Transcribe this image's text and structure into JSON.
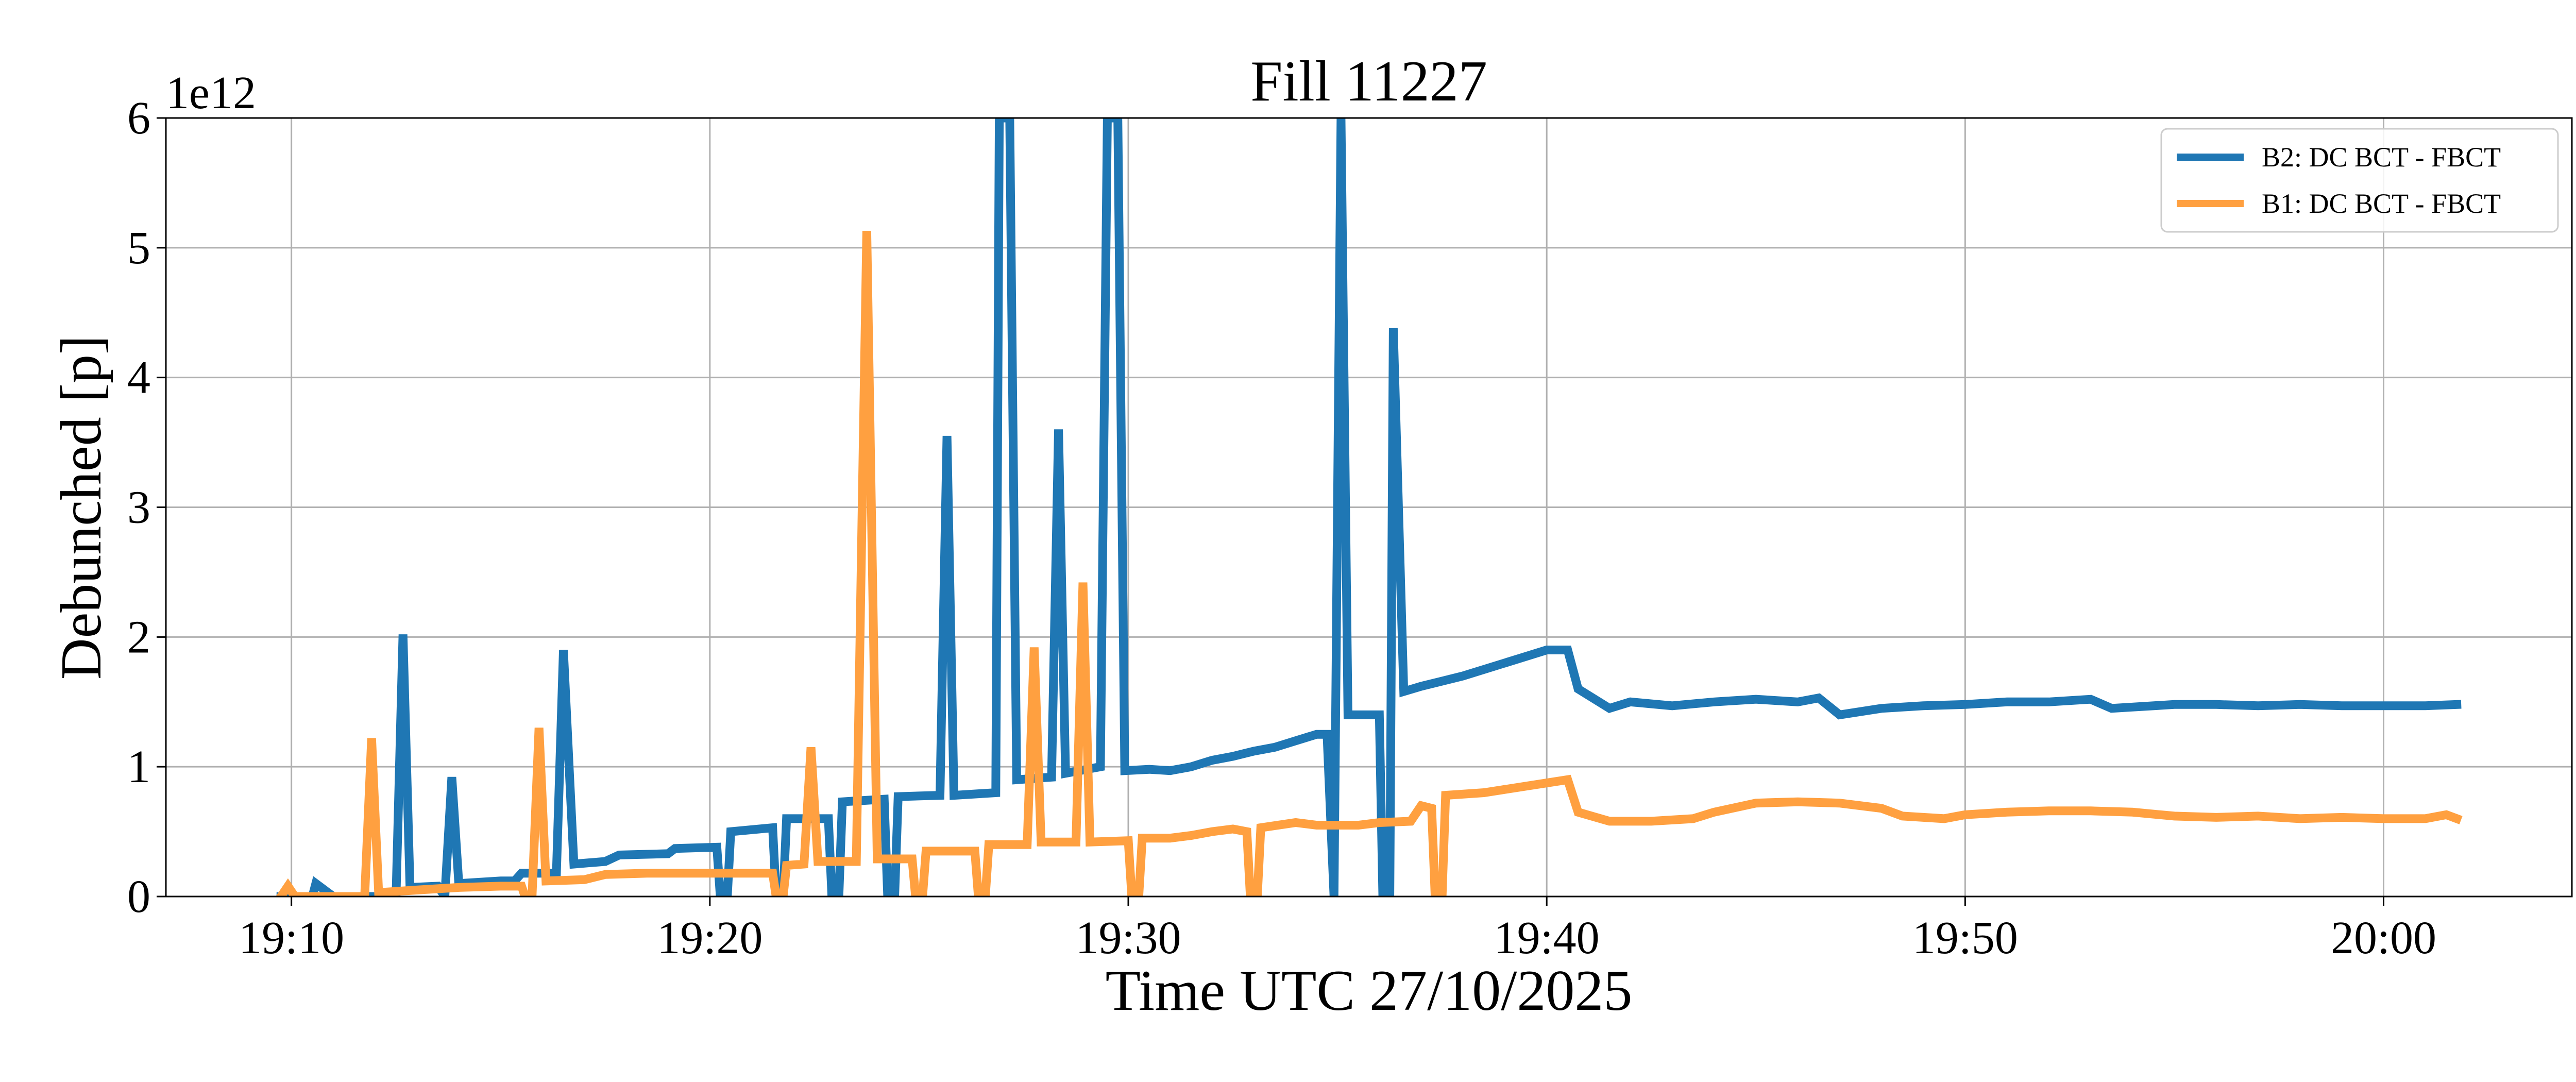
{
  "chart_data": {
    "type": "line",
    "title": "Fill 11227",
    "xlabel": "Time UTC 27/10/2025",
    "ylabel": "Debunched [p]",
    "y_offset_label": "1e12",
    "y_unit_scale": 1000000000000.0,
    "xlim": [
      "19:07",
      "20:04:30"
    ],
    "ylim": [
      0,
      6
    ],
    "x_ticks": [
      "19:10",
      "19:20",
      "19:30",
      "19:40",
      "19:50",
      "20:00"
    ],
    "y_ticks": [
      0,
      1,
      2,
      3,
      4,
      5,
      6
    ],
    "grid": true,
    "legend_position": "top-right",
    "series": [
      {
        "name": "B2: DC BCT - FBCT",
        "color": "#1f77b4",
        "points": [
          [
            "19:09:45",
            0.0
          ],
          [
            "19:10:30",
            0.0
          ],
          [
            "19:10:35",
            0.1
          ],
          [
            "19:11:00",
            0.0
          ],
          [
            "19:12:00",
            0.0
          ],
          [
            "19:12:30",
            0.0
          ],
          [
            "19:12:40",
            2.02
          ],
          [
            "19:12:50",
            0.07
          ],
          [
            "19:13:30",
            0.08
          ],
          [
            "19:13:40",
            0.0
          ],
          [
            "19:13:50",
            0.92
          ],
          [
            "19:14:00",
            0.1
          ],
          [
            "19:15:00",
            0.12
          ],
          [
            "19:15:20",
            0.12
          ],
          [
            "19:15:30",
            0.18
          ],
          [
            "19:16:20",
            0.18
          ],
          [
            "19:16:30",
            1.9
          ],
          [
            "19:16:45",
            0.25
          ],
          [
            "19:17:30",
            0.27
          ],
          [
            "19:17:50",
            0.32
          ],
          [
            "19:19:00",
            0.33
          ],
          [
            "19:19:10",
            0.37
          ],
          [
            "19:20:10",
            0.38
          ],
          [
            "19:20:15",
            0.0
          ],
          [
            "19:20:25",
            0.0
          ],
          [
            "19:20:30",
            0.5
          ],
          [
            "19:21:30",
            0.53
          ],
          [
            "19:21:35",
            0.0
          ],
          [
            "19:21:45",
            0.0
          ],
          [
            "19:21:50",
            0.6
          ],
          [
            "19:22:50",
            0.6
          ],
          [
            "19:22:55",
            0.0
          ],
          [
            "19:23:05",
            0.0
          ],
          [
            "19:23:10",
            0.73
          ],
          [
            "19:24:10",
            0.75
          ],
          [
            "19:24:15",
            0.0
          ],
          [
            "19:24:25",
            0.0
          ],
          [
            "19:24:30",
            0.77
          ],
          [
            "19:25:30",
            0.78
          ],
          [
            "19:25:40",
            3.55
          ],
          [
            "19:25:50",
            0.78
          ],
          [
            "19:26:50",
            0.8
          ],
          [
            "19:26:55",
            6.0
          ],
          [
            "19:27:10",
            6.0
          ],
          [
            "19:27:20",
            0.9
          ],
          [
            "19:28:10",
            0.92
          ],
          [
            "19:28:20",
            3.6
          ],
          [
            "19:28:30",
            0.95
          ],
          [
            "19:29:20",
            1.0
          ],
          [
            "19:29:30",
            6.0
          ],
          [
            "19:29:45",
            6.0
          ],
          [
            "19:29:55",
            0.97
          ],
          [
            "19:30:30",
            0.98
          ],
          [
            "19:31:00",
            0.97
          ],
          [
            "19:31:30",
            1.0
          ],
          [
            "19:32:00",
            1.05
          ],
          [
            "19:32:30",
            1.08
          ],
          [
            "19:33:00",
            1.12
          ],
          [
            "19:33:30",
            1.15
          ],
          [
            "19:34:00",
            1.2
          ],
          [
            "19:34:30",
            1.25
          ],
          [
            "19:34:45",
            1.25
          ],
          [
            "19:34:55",
            0.0
          ],
          [
            "19:35:05",
            6.0
          ],
          [
            "19:35:15",
            1.4
          ],
          [
            "19:36:00",
            1.4
          ],
          [
            "19:36:05",
            0.0
          ],
          [
            "19:36:15",
            0.0
          ],
          [
            "19:36:20",
            4.38
          ],
          [
            "19:36:35",
            1.58
          ],
          [
            "19:37:00",
            1.62
          ],
          [
            "19:38:00",
            1.7
          ],
          [
            "19:39:00",
            1.8
          ],
          [
            "19:40:00",
            1.9
          ],
          [
            "19:40:30",
            1.9
          ],
          [
            "19:40:45",
            1.6
          ],
          [
            "19:41:30",
            1.45
          ],
          [
            "19:42:00",
            1.5
          ],
          [
            "19:43:00",
            1.47
          ],
          [
            "19:44:00",
            1.5
          ],
          [
            "19:45:00",
            1.52
          ],
          [
            "19:46:00",
            1.5
          ],
          [
            "19:46:30",
            1.53
          ],
          [
            "19:47:00",
            1.4
          ],
          [
            "19:48:00",
            1.45
          ],
          [
            "19:49:00",
            1.47
          ],
          [
            "19:50:00",
            1.48
          ],
          [
            "19:51:00",
            1.5
          ],
          [
            "19:52:00",
            1.5
          ],
          [
            "19:53:00",
            1.52
          ],
          [
            "19:53:30",
            1.45
          ],
          [
            "19:54:00",
            1.46
          ],
          [
            "19:55:00",
            1.48
          ],
          [
            "19:56:00",
            1.48
          ],
          [
            "19:57:00",
            1.47
          ],
          [
            "19:58:00",
            1.48
          ],
          [
            "19:59:00",
            1.47
          ],
          [
            "20:00:00",
            1.47
          ],
          [
            "20:01:00",
            1.47
          ],
          [
            "20:01:45",
            1.48
          ]
        ]
      },
      {
        "name": "B1: DC BCT - FBCT",
        "color": "#ffa040",
        "points": [
          [
            "19:09:45",
            0.0
          ],
          [
            "19:09:55",
            0.08
          ],
          [
            "19:10:05",
            0.0
          ],
          [
            "19:11:45",
            0.0
          ],
          [
            "19:11:55",
            1.22
          ],
          [
            "19:12:05",
            0.03
          ],
          [
            "19:13:00",
            0.05
          ],
          [
            "19:14:00",
            0.07
          ],
          [
            "19:15:00",
            0.08
          ],
          [
            "19:15:30",
            0.08
          ],
          [
            "19:15:35",
            0.0
          ],
          [
            "19:15:45",
            0.0
          ],
          [
            "19:15:55",
            1.3
          ],
          [
            "19:16:05",
            0.12
          ],
          [
            "19:17:00",
            0.13
          ],
          [
            "19:17:30",
            0.17
          ],
          [
            "19:18:30",
            0.18
          ],
          [
            "19:19:30",
            0.18
          ],
          [
            "19:20:30",
            0.18
          ],
          [
            "19:21:30",
            0.18
          ],
          [
            "19:21:35",
            0.0
          ],
          [
            "19:21:45",
            0.0
          ],
          [
            "19:21:50",
            0.24
          ],
          [
            "19:22:15",
            0.25
          ],
          [
            "19:22:25",
            1.15
          ],
          [
            "19:22:35",
            0.27
          ],
          [
            "19:23:30",
            0.27
          ],
          [
            "19:23:45",
            5.13
          ],
          [
            "19:24:00",
            0.29
          ],
          [
            "19:24:50",
            0.29
          ],
          [
            "19:24:55",
            0.0
          ],
          [
            "19:25:05",
            0.0
          ],
          [
            "19:25:10",
            0.35
          ],
          [
            "19:26:20",
            0.35
          ],
          [
            "19:26:25",
            0.0
          ],
          [
            "19:26:35",
            0.0
          ],
          [
            "19:26:40",
            0.4
          ],
          [
            "19:27:35",
            0.4
          ],
          [
            "19:27:45",
            1.92
          ],
          [
            "19:27:55",
            0.42
          ],
          [
            "19:28:45",
            0.42
          ],
          [
            "19:28:55",
            2.42
          ],
          [
            "19:29:05",
            0.42
          ],
          [
            "19:30:00",
            0.43
          ],
          [
            "19:30:05",
            0.0
          ],
          [
            "19:30:15",
            0.0
          ],
          [
            "19:30:20",
            0.45
          ],
          [
            "19:31:00",
            0.45
          ],
          [
            "19:31:30",
            0.47
          ],
          [
            "19:32:00",
            0.5
          ],
          [
            "19:32:30",
            0.52
          ],
          [
            "19:32:50",
            0.5
          ],
          [
            "19:32:55",
            0.0
          ],
          [
            "19:33:05",
            0.0
          ],
          [
            "19:33:10",
            0.53
          ],
          [
            "19:34:00",
            0.57
          ],
          [
            "19:34:30",
            0.55
          ],
          [
            "19:35:30",
            0.55
          ],
          [
            "19:36:00",
            0.57
          ],
          [
            "19:36:45",
            0.58
          ],
          [
            "19:37:00",
            0.7
          ],
          [
            "19:37:15",
            0.68
          ],
          [
            "19:37:20",
            0.0
          ],
          [
            "19:37:30",
            0.0
          ],
          [
            "19:37:35",
            0.78
          ],
          [
            "19:38:30",
            0.8
          ],
          [
            "19:39:30",
            0.85
          ],
          [
            "19:40:30",
            0.9
          ],
          [
            "19:40:45",
            0.65
          ],
          [
            "19:41:30",
            0.58
          ],
          [
            "19:42:30",
            0.58
          ],
          [
            "19:43:30",
            0.6
          ],
          [
            "19:44:00",
            0.65
          ],
          [
            "19:45:00",
            0.72
          ],
          [
            "19:46:00",
            0.73
          ],
          [
            "19:47:00",
            0.72
          ],
          [
            "19:48:00",
            0.68
          ],
          [
            "19:48:30",
            0.62
          ],
          [
            "19:49:30",
            0.6
          ],
          [
            "19:50:00",
            0.63
          ],
          [
            "19:51:00",
            0.65
          ],
          [
            "19:52:00",
            0.66
          ],
          [
            "19:53:00",
            0.66
          ],
          [
            "19:54:00",
            0.65
          ],
          [
            "19:55:00",
            0.62
          ],
          [
            "19:56:00",
            0.61
          ],
          [
            "19:57:00",
            0.62
          ],
          [
            "19:58:00",
            0.6
          ],
          [
            "19:59:00",
            0.61
          ],
          [
            "20:00:00",
            0.6
          ],
          [
            "20:01:00",
            0.6
          ],
          [
            "20:01:30",
            0.63
          ],
          [
            "20:01:45",
            0.6
          ]
        ]
      }
    ]
  }
}
